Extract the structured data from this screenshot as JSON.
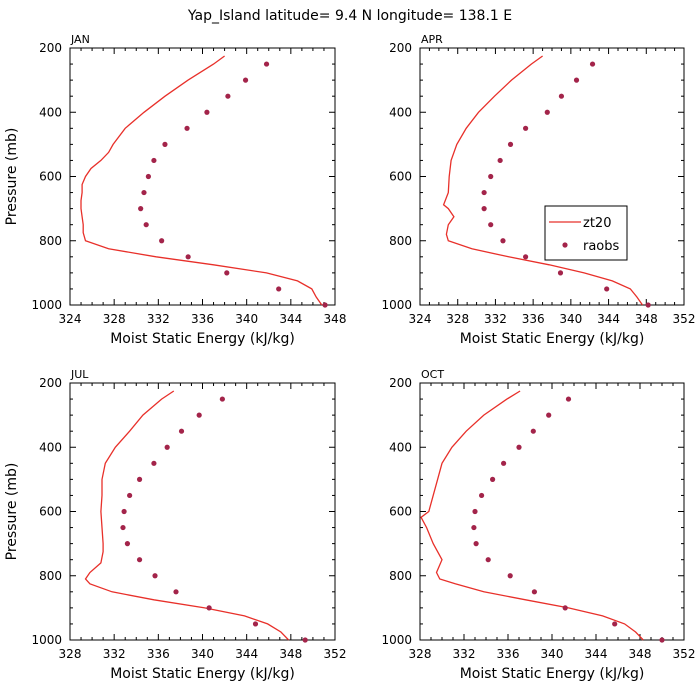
{
  "figure": {
    "title": "Yap_Island  latitude= 9.4 N longitude= 138.1 E"
  },
  "legend": {
    "model_label": "zt20",
    "obs_label": "raobs",
    "placement": "inside APR panel, right"
  },
  "colors": {
    "model": "#e8302a",
    "obs": "#a3244a",
    "axis": "#000000"
  },
  "chart_data": [
    {
      "type": "line",
      "panel_label": "JAN",
      "xlabel": "Moist Static Energy (kJ/kg)",
      "ylabel": "Pressure (mb)",
      "xlim": [
        324,
        348
      ],
      "ylim": [
        1000,
        200
      ],
      "x_ticks": [
        324,
        328,
        332,
        336,
        340,
        344,
        348
      ],
      "y_ticks": [
        200,
        400,
        600,
        800,
        1000
      ],
      "series": [
        {
          "name": "zt20",
          "style": "line",
          "points": [
            [
              338,
              225
            ],
            [
              337,
              250
            ],
            [
              334.7,
              300
            ],
            [
              332.6,
              350
            ],
            [
              330.7,
              400
            ],
            [
              329,
              450
            ],
            [
              327.9,
              500
            ],
            [
              327.5,
              525
            ],
            [
              326.8,
              550
            ],
            [
              325.9,
              575
            ],
            [
              325.4,
              600
            ],
            [
              325.1,
              625
            ],
            [
              325.1,
              650
            ],
            [
              325.0,
              675
            ],
            [
              325.0,
              700
            ],
            [
              325.1,
              725
            ],
            [
              325.2,
              750
            ],
            [
              325.2,
              775
            ],
            [
              325.4,
              800
            ],
            [
              327.5,
              825
            ],
            [
              331.8,
              850
            ],
            [
              337.0,
              875
            ],
            [
              341.8,
              900
            ],
            [
              344.6,
              925
            ],
            [
              345.9,
              950
            ],
            [
              346.3,
              975
            ],
            [
              346.8,
              1000
            ]
          ]
        },
        {
          "name": "raobs",
          "style": "markers",
          "points": [
            [
              341.8,
              250
            ],
            [
              339.9,
              300
            ],
            [
              338.3,
              350
            ],
            [
              336.4,
              400
            ],
            [
              334.6,
              450
            ],
            [
              332.6,
              500
            ],
            [
              331.6,
              550
            ],
            [
              331.1,
              600
            ],
            [
              330.7,
              650
            ],
            [
              330.4,
              700
            ],
            [
              330.9,
              750
            ],
            [
              332.3,
              800
            ],
            [
              334.7,
              850
            ],
            [
              338.2,
              900
            ],
            [
              342.9,
              950
            ],
            [
              347.1,
              1000
            ]
          ]
        }
      ]
    },
    {
      "type": "line",
      "panel_label": "APR",
      "xlabel": "Moist Static Energy (kJ/kg)",
      "ylabel": "",
      "xlim": [
        324,
        352
      ],
      "ylim": [
        1000,
        200
      ],
      "x_ticks": [
        324,
        328,
        332,
        336,
        340,
        344,
        348,
        352
      ],
      "y_ticks": [
        200,
        400,
        600,
        800,
        1000
      ],
      "series": [
        {
          "name": "zt20",
          "style": "line",
          "points": [
            [
              337,
              225
            ],
            [
              335.8,
              250
            ],
            [
              333.7,
              300
            ],
            [
              331.9,
              350
            ],
            [
              330.2,
              400
            ],
            [
              328.9,
              450
            ],
            [
              327.9,
              500
            ],
            [
              327.3,
              550
            ],
            [
              327.1,
              600
            ],
            [
              327.0,
              650
            ],
            [
              326.5,
              688
            ],
            [
              327.0,
              700
            ],
            [
              327.6,
              725
            ],
            [
              327.0,
              750
            ],
            [
              326.8,
              780
            ],
            [
              327.0,
              800
            ],
            [
              329.5,
              825
            ],
            [
              333.4,
              850
            ],
            [
              337.7,
              875
            ],
            [
              341.4,
              900
            ],
            [
              344.4,
              925
            ],
            [
              346.3,
              950
            ],
            [
              347.0,
              975
            ],
            [
              347.6,
              1000
            ]
          ]
        },
        {
          "name": "raobs",
          "style": "markers",
          "points": [
            [
              342.3,
              250
            ],
            [
              340.6,
              300
            ],
            [
              339.0,
              350
            ],
            [
              337.5,
              400
            ],
            [
              335.2,
              450
            ],
            [
              333.6,
              500
            ],
            [
              332.5,
              550
            ],
            [
              331.5,
              600
            ],
            [
              330.8,
              650
            ],
            [
              330.8,
              700
            ],
            [
              331.5,
              750
            ],
            [
              332.8,
              800
            ],
            [
              335.2,
              850
            ],
            [
              338.9,
              900
            ],
            [
              343.8,
              950
            ],
            [
              348.2,
              1000
            ]
          ]
        }
      ]
    },
    {
      "type": "line",
      "panel_label": "JUL",
      "xlabel": "Moist Static Energy (kJ/kg)",
      "ylabel": "Pressure (mb)",
      "xlim": [
        328,
        352
      ],
      "ylim": [
        1000,
        200
      ],
      "x_ticks": [
        328,
        332,
        336,
        340,
        344,
        348,
        352
      ],
      "y_ticks": [
        200,
        400,
        600,
        800,
        1000
      ],
      "series": [
        {
          "name": "zt20",
          "style": "line",
          "points": [
            [
              337.4,
              225
            ],
            [
              336.3,
              250
            ],
            [
              334.6,
              300
            ],
            [
              333.4,
              350
            ],
            [
              332.1,
              400
            ],
            [
              331.2,
              450
            ],
            [
              330.9,
              500
            ],
            [
              330.9,
              550
            ],
            [
              330.8,
              600
            ],
            [
              330.9,
              650
            ],
            [
              331.0,
              700
            ],
            [
              331.0,
              725
            ],
            [
              330.8,
              760
            ],
            [
              329.8,
              790
            ],
            [
              329.4,
              810
            ],
            [
              329.8,
              825
            ],
            [
              331.8,
              850
            ],
            [
              335.6,
              875
            ],
            [
              340.2,
              900
            ],
            [
              343.8,
              925
            ],
            [
              345.9,
              950
            ],
            [
              347.1,
              975
            ],
            [
              347.8,
              1000
            ]
          ]
        },
        {
          "name": "raobs",
          "style": "markers",
          "points": [
            [
              341.8,
              250
            ],
            [
              339.7,
              300
            ],
            [
              338.1,
              350
            ],
            [
              336.8,
              400
            ],
            [
              335.6,
              450
            ],
            [
              334.3,
              500
            ],
            [
              333.4,
              550
            ],
            [
              332.9,
              600
            ],
            [
              332.8,
              650
            ],
            [
              333.2,
              700
            ],
            [
              334.3,
              750
            ],
            [
              335.7,
              800
            ],
            [
              337.6,
              850
            ],
            [
              340.6,
              900
            ],
            [
              344.8,
              950
            ],
            [
              349.3,
              1000
            ]
          ]
        }
      ]
    },
    {
      "type": "line",
      "panel_label": "OCT",
      "xlabel": "Moist Static Energy (kJ/kg)",
      "ylabel": "",
      "xlim": [
        328,
        352
      ],
      "ylim": [
        1000,
        200
      ],
      "x_ticks": [
        328,
        332,
        336,
        340,
        344,
        348,
        352
      ],
      "y_ticks": [
        200,
        400,
        600,
        800,
        1000
      ],
      "series": [
        {
          "name": "zt20",
          "style": "line",
          "points": [
            [
              337.1,
              225
            ],
            [
              335.9,
              250
            ],
            [
              333.8,
              300
            ],
            [
              332.2,
              350
            ],
            [
              330.9,
              400
            ],
            [
              330.0,
              450
            ],
            [
              329.6,
              500
            ],
            [
              329.2,
              550
            ],
            [
              328.8,
              600
            ],
            [
              328.1,
              618
            ],
            [
              328.6,
              650
            ],
            [
              329.2,
              700
            ],
            [
              330.0,
              750
            ],
            [
              329.5,
              790
            ],
            [
              329.8,
              810
            ],
            [
              331.2,
              825
            ],
            [
              333.8,
              850
            ],
            [
              337.6,
              875
            ],
            [
              341.5,
              900
            ],
            [
              344.6,
              925
            ],
            [
              346.6,
              950
            ],
            [
              347.6,
              975
            ],
            [
              348.3,
              1000
            ]
          ]
        },
        {
          "name": "raobs",
          "style": "markers",
          "points": [
            [
              341.5,
              250
            ],
            [
              339.7,
              300
            ],
            [
              338.3,
              350
            ],
            [
              337.0,
              400
            ],
            [
              335.6,
              450
            ],
            [
              334.6,
              500
            ],
            [
              333.6,
              550
            ],
            [
              333.0,
              600
            ],
            [
              332.9,
              650
            ],
            [
              333.1,
              700
            ],
            [
              334.2,
              750
            ],
            [
              336.2,
              800
            ],
            [
              338.4,
              850
            ],
            [
              341.2,
              900
            ],
            [
              345.7,
              950
            ],
            [
              350.0,
              1000
            ]
          ]
        }
      ]
    }
  ]
}
